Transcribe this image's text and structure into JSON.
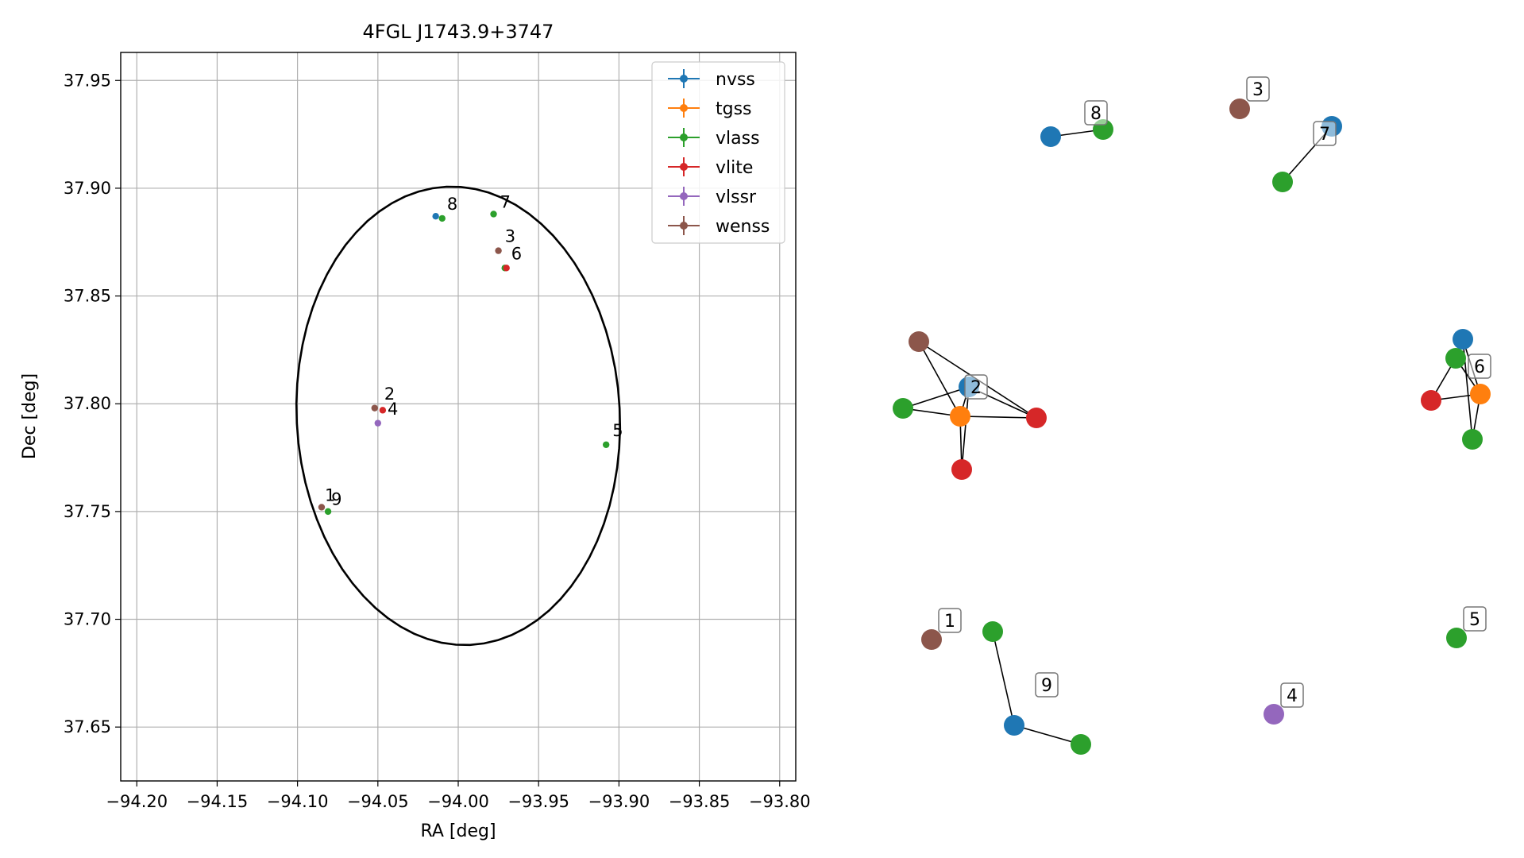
{
  "chart_data": [
    {
      "type": "scatter",
      "title": "4FGL J1743.9+3747",
      "xlabel": "RA [deg]",
      "ylabel": "Dec [deg]",
      "xlim": [
        -94.21,
        -93.79
      ],
      "ylim": [
        37.625,
        37.963
      ],
      "xticks": [
        -94.2,
        -94.15,
        -94.1,
        -94.05,
        -94.0,
        -93.95,
        -93.9,
        -93.85,
        -93.8
      ],
      "xtick_labels": [
        "−94.20",
        "−94.15",
        "−94.10",
        "−94.05",
        "−94.00",
        "−93.95",
        "−93.90",
        "−93.85",
        "−93.80"
      ],
      "yticks": [
        37.65,
        37.7,
        37.75,
        37.8,
        37.85,
        37.9,
        37.95
      ],
      "ytick_labels": [
        "37.65",
        "37.70",
        "37.75",
        "37.80",
        "37.85",
        "37.90",
        "37.95"
      ],
      "grid": true,
      "legend": "top-right",
      "series": [
        {
          "name": "nvss",
          "color": "#1f77b4",
          "points": [
            [
              -94.014,
              37.887
            ]
          ]
        },
        {
          "name": "tgss",
          "color": "#ff7f0e",
          "points": []
        },
        {
          "name": "vlass",
          "color": "#2ca02c",
          "points": [
            [
              -94.01,
              37.886
            ],
            [
              -93.978,
              37.888
            ],
            [
              -93.971,
              37.863
            ],
            [
              -93.908,
              37.781
            ],
            [
              -94.081,
              37.75
            ]
          ]
        },
        {
          "name": "vlite",
          "color": "#d62728",
          "points": [
            [
              -94.047,
              37.797
            ],
            [
              -93.97,
              37.863
            ]
          ]
        },
        {
          "name": "vlssr",
          "color": "#9467bd",
          "points": [
            [
              -94.05,
              37.791
            ]
          ]
        },
        {
          "name": "wenss",
          "color": "#8c564b",
          "points": [
            [
              -94.052,
              37.798
            ],
            [
              -93.975,
              37.871
            ],
            [
              -94.085,
              37.752
            ]
          ]
        }
      ],
      "annotations": [
        {
          "text": "1",
          "x": -94.083,
          "y": 37.755
        },
        {
          "text": "2",
          "x": -94.046,
          "y": 37.802
        },
        {
          "text": "3",
          "x": -93.971,
          "y": 37.875
        },
        {
          "text": "4",
          "x": -94.044,
          "y": 37.795
        },
        {
          "text": "5",
          "x": -93.904,
          "y": 37.785
        },
        {
          "text": "6",
          "x": -93.967,
          "y": 37.867
        },
        {
          "text": "7",
          "x": -93.974,
          "y": 37.891
        },
        {
          "text": "8",
          "x": -94.007,
          "y": 37.89
        },
        {
          "text": "9",
          "x": -94.079,
          "y": 37.753
        }
      ],
      "ellipse": {
        "color": "#000000",
        "center": [
          -94.0,
          37.7944
        ],
        "ra_semi_axis": 0.1,
        "dec_semi_axis": 0.107,
        "rotation_deg": 18
      }
    },
    {
      "type": "network",
      "colors": {
        "nvss": "#1f77b4",
        "tgss": "#ff7f0e",
        "vlass": "#2ca02c",
        "vlite": "#d62728",
        "vlssr": "#9467bd",
        "wenss": "#8c564b"
      },
      "labels": [
        "1",
        "2",
        "3",
        "4",
        "5",
        "6",
        "7",
        "8",
        "9"
      ]
    }
  ]
}
